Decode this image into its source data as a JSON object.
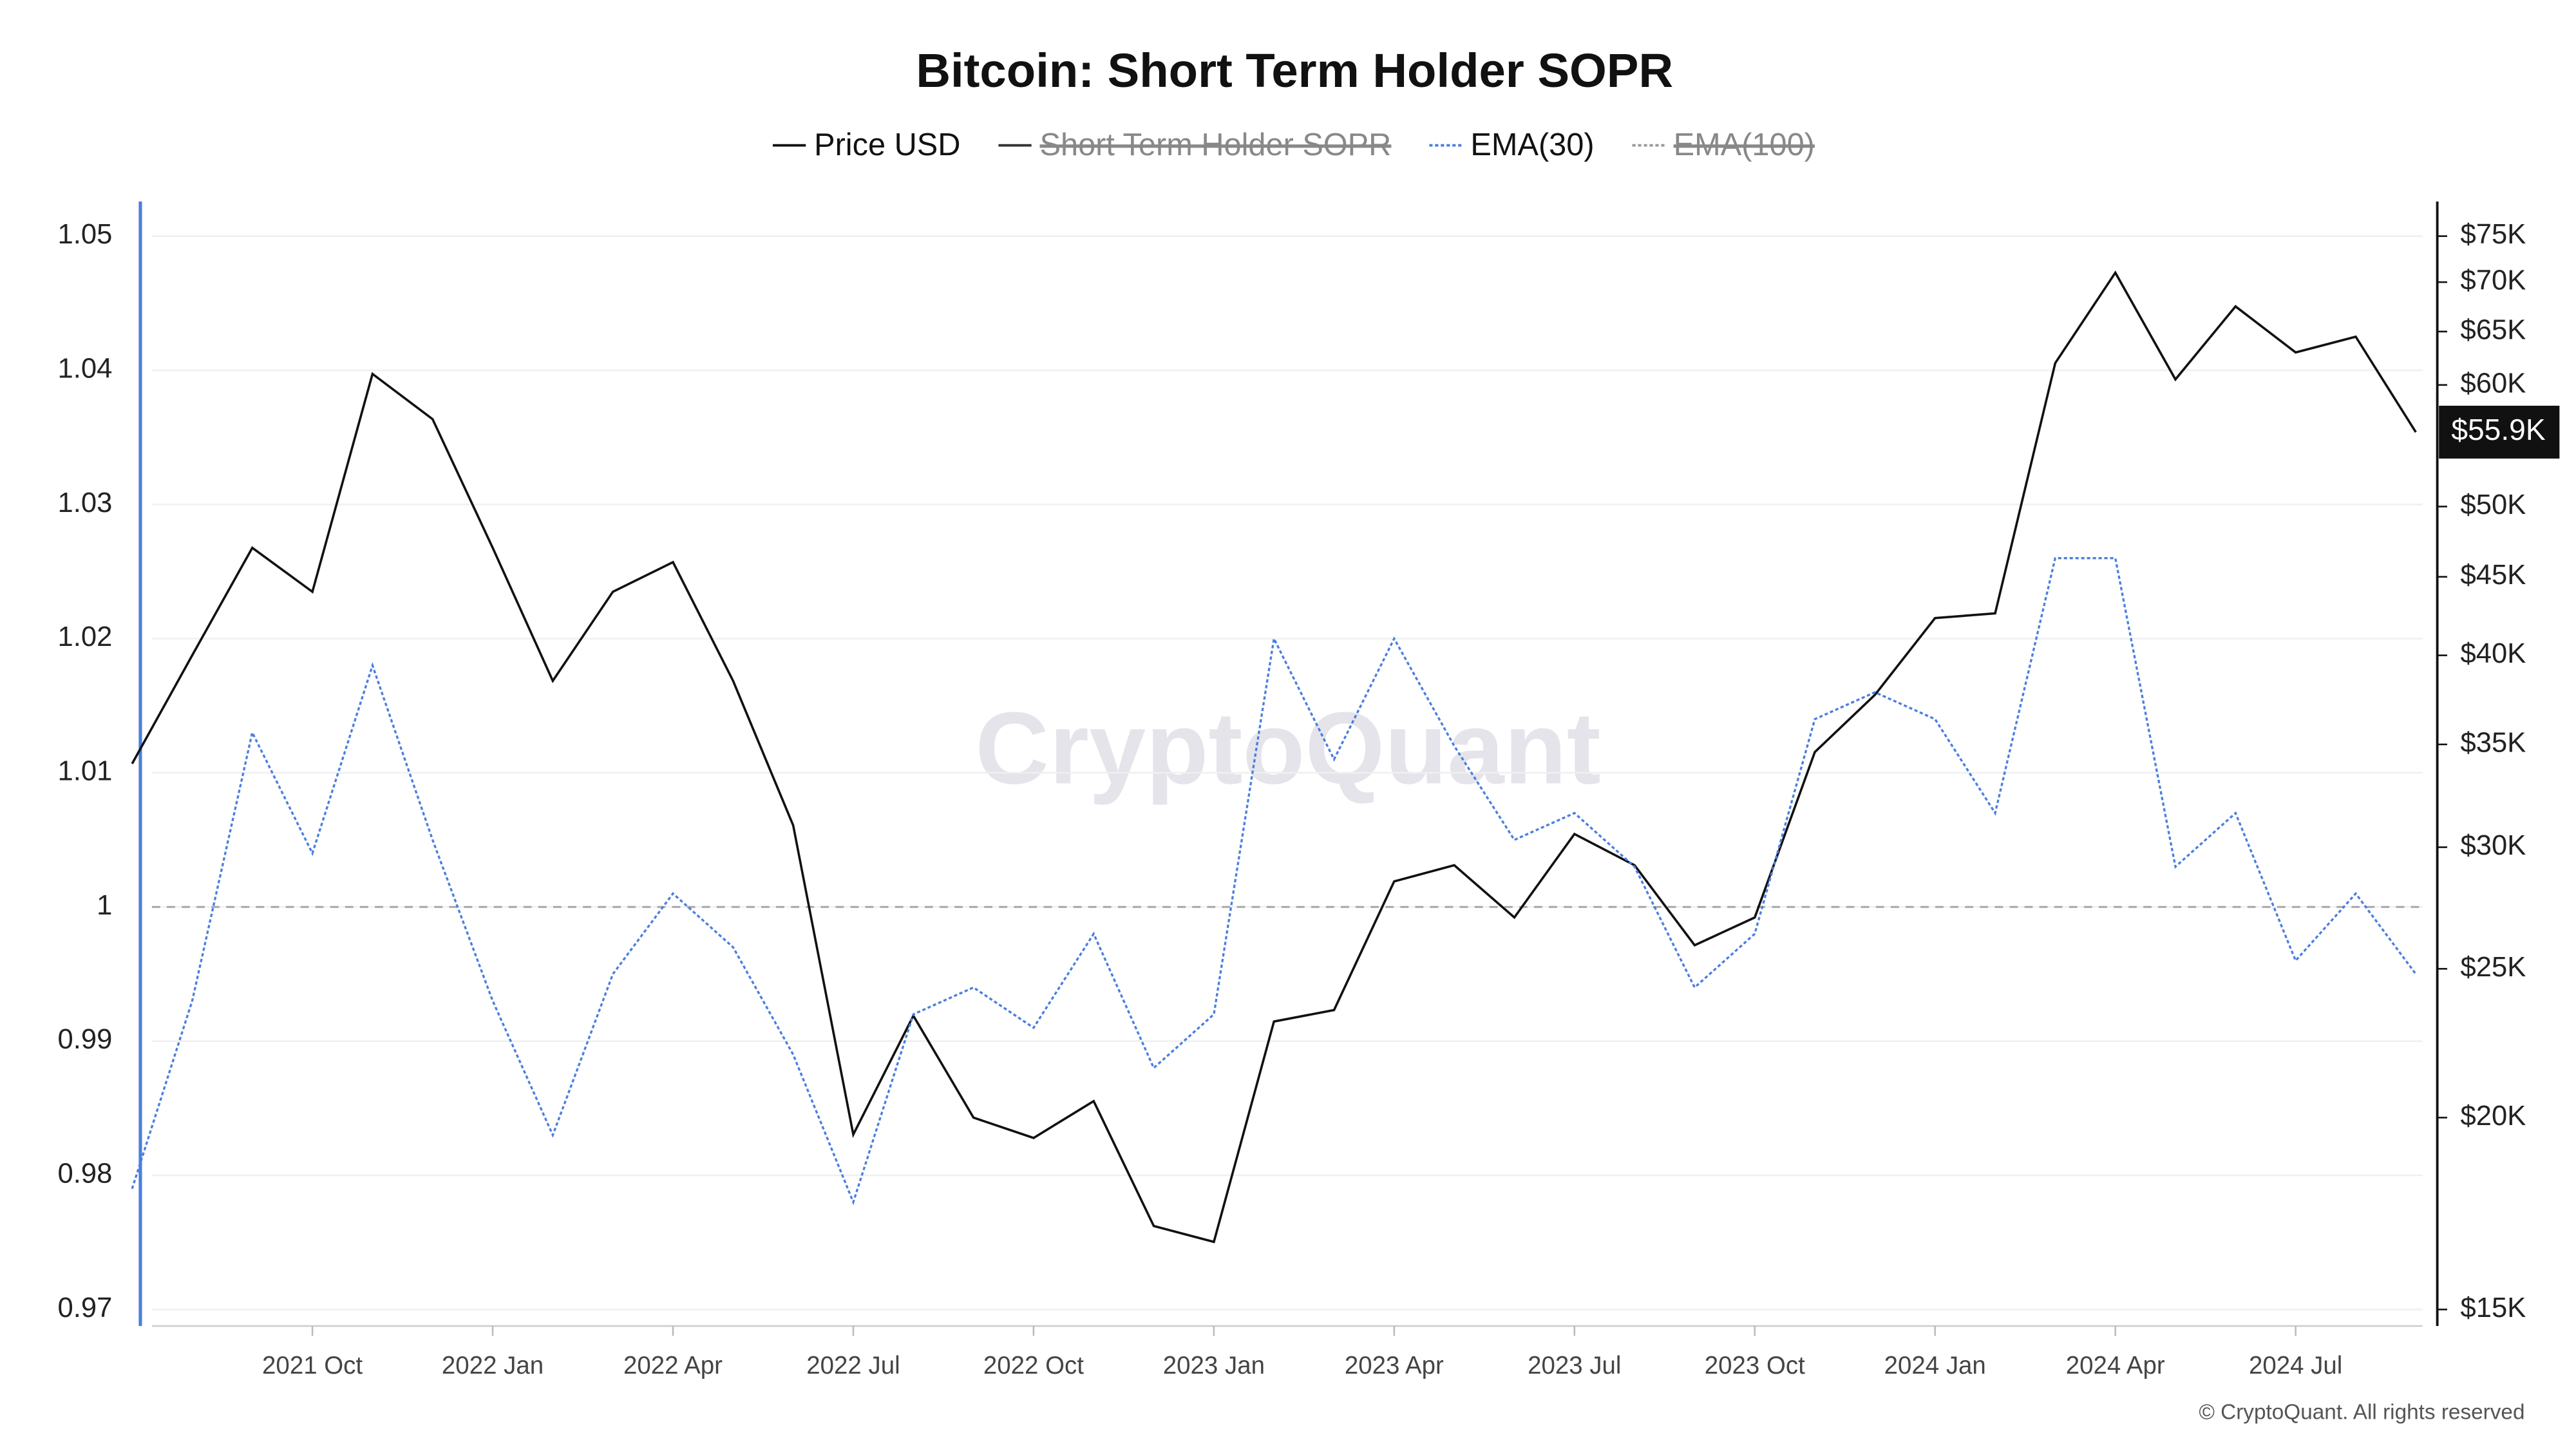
{
  "chart_data": {
    "type": "line",
    "title": "Bitcoin: Short Term Holder SOPR",
    "watermark": "CryptoQuant",
    "copyright": "© CryptoQuant. All rights reserved",
    "x": [
      "2021-07",
      "2021-08",
      "2021-09",
      "2021-10",
      "2021-11",
      "2021-12",
      "2022-01",
      "2022-02",
      "2022-03",
      "2022-04",
      "2022-05",
      "2022-06",
      "2022-07",
      "2022-08",
      "2022-09",
      "2022-10",
      "2022-11",
      "2022-12",
      "2023-01",
      "2023-02",
      "2023-03",
      "2023-04",
      "2023-05",
      "2023-06",
      "2023-07",
      "2023-08",
      "2023-09",
      "2023-10",
      "2023-11",
      "2023-12",
      "2024-01",
      "2024-02",
      "2024-03",
      "2024-04",
      "2024-05",
      "2024-06",
      "2024-07",
      "2024-08",
      "2024-09"
    ],
    "xlim": [
      "2021-07",
      "2024-09"
    ],
    "xticks": [
      {
        "value": "2021-10",
        "label": "2021 Oct"
      },
      {
        "value": "2022-01",
        "label": "2022 Jan"
      },
      {
        "value": "2022-04",
        "label": "2022 Apr"
      },
      {
        "value": "2022-07",
        "label": "2022 Jul"
      },
      {
        "value": "2022-10",
        "label": "2022 Oct"
      },
      {
        "value": "2023-01",
        "label": "2023 Jan"
      },
      {
        "value": "2023-04",
        "label": "2023 Apr"
      },
      {
        "value": "2023-07",
        "label": "2023 Jul"
      },
      {
        "value": "2023-10",
        "label": "2023 Oct"
      },
      {
        "value": "2024-01",
        "label": "2024 Jan"
      },
      {
        "value": "2024-04",
        "label": "2024 Apr"
      },
      {
        "value": "2024-07",
        "label": "2024 Jul"
      }
    ],
    "ylim": [
      0.97,
      1.05
    ],
    "yticks": [
      0.97,
      0.98,
      0.99,
      1,
      1.01,
      1.02,
      1.03,
      1.04,
      1.05
    ],
    "y2lim": [
      15000,
      75000
    ],
    "y2log": true,
    "y2ticks": [
      {
        "value": 15000,
        "label": "$15K"
      },
      {
        "value": 20000,
        "label": "$20K"
      },
      {
        "value": 25000,
        "label": "$25K"
      },
      {
        "value": 30000,
        "label": "$30K"
      },
      {
        "value": 35000,
        "label": "$35K"
      },
      {
        "value": 40000,
        "label": "$40K"
      },
      {
        "value": 45000,
        "label": "$45K"
      },
      {
        "value": 50000,
        "label": "$50K"
      },
      {
        "value": 60000,
        "label": "$60K"
      },
      {
        "value": 65000,
        "label": "$65K"
      },
      {
        "value": 70000,
        "label": "$70K"
      },
      {
        "value": 75000,
        "label": "$75K"
      }
    ],
    "hline": 1,
    "grid": true,
    "series": [
      {
        "name": "Price USD",
        "color": "#111111",
        "axis": "y2",
        "dash": false,
        "values": [
          34000,
          40000,
          47000,
          44000,
          61000,
          57000,
          47000,
          38500,
          44000,
          46000,
          38500,
          31000,
          19500,
          23300,
          20000,
          19400,
          20500,
          17000,
          16600,
          23100,
          23500,
          28500,
          29200,
          27000,
          30600,
          29200,
          25900,
          27000,
          34600,
          37700,
          42300,
          42600,
          62000,
          71000,
          60500,
          67500,
          63000,
          64500,
          55900
        ],
        "value_labels": [
          null,
          null,
          null,
          null,
          null,
          null,
          null,
          null,
          null,
          null,
          null,
          null,
          null,
          null,
          null,
          null,
          null,
          null,
          null,
          null,
          null,
          null,
          null,
          null,
          null,
          null,
          null,
          null,
          null,
          null,
          null,
          null,
          null,
          null,
          null,
          null,
          null,
          null,
          "$55.9K"
        ]
      },
      {
        "name": "Short Term Holder SOPR",
        "color": "#333333",
        "hidden": true,
        "dash": false
      },
      {
        "name": "EMA(30)",
        "color": "#4a7ee0",
        "dash": true,
        "values": [
          0.979,
          0.993,
          1.013,
          1.004,
          1.018,
          1.005,
          0.993,
          0.983,
          0.995,
          1.001,
          0.997,
          0.989,
          0.978,
          0.992,
          0.994,
          0.991,
          0.998,
          0.988,
          0.992,
          1.02,
          1.011,
          1.02,
          1.012,
          1.005,
          1.007,
          1.003,
          0.994,
          0.998,
          1.014,
          1.016,
          1.014,
          1.007,
          1.026,
          1.026,
          1.003,
          1.007,
          0.996,
          1.001,
          0.995
        ]
      },
      {
        "name": "EMA(100)",
        "color": "#999999",
        "hidden": true,
        "dash": true
      }
    ]
  }
}
